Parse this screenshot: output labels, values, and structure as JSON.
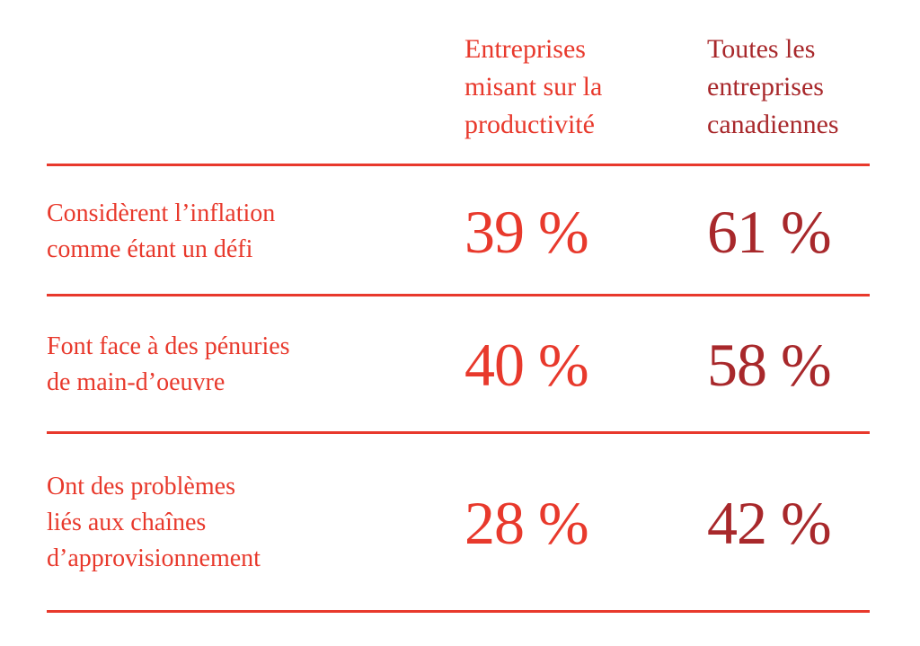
{
  "table": {
    "headers": [
      [
        "Entreprises",
        "misant sur la",
        "productivité"
      ],
      [
        "Toutes les",
        "entreprises",
        "canadiennes"
      ]
    ],
    "rows": [
      {
        "label": [
          "Considèrent l’inflation",
          "comme étant un défi"
        ],
        "cells": [
          "39 %",
          "61 %"
        ]
      },
      {
        "label": [
          "Font face à des pénuries",
          "de main-d’oeuvre"
        ],
        "cells": [
          "40 %",
          "58 %"
        ]
      },
      {
        "label": [
          "Ont des problèmes",
          "liés aux chaînes",
          "d’approvisionnement"
        ],
        "cells": [
          "28 %",
          "42 %"
        ]
      }
    ]
  }
}
